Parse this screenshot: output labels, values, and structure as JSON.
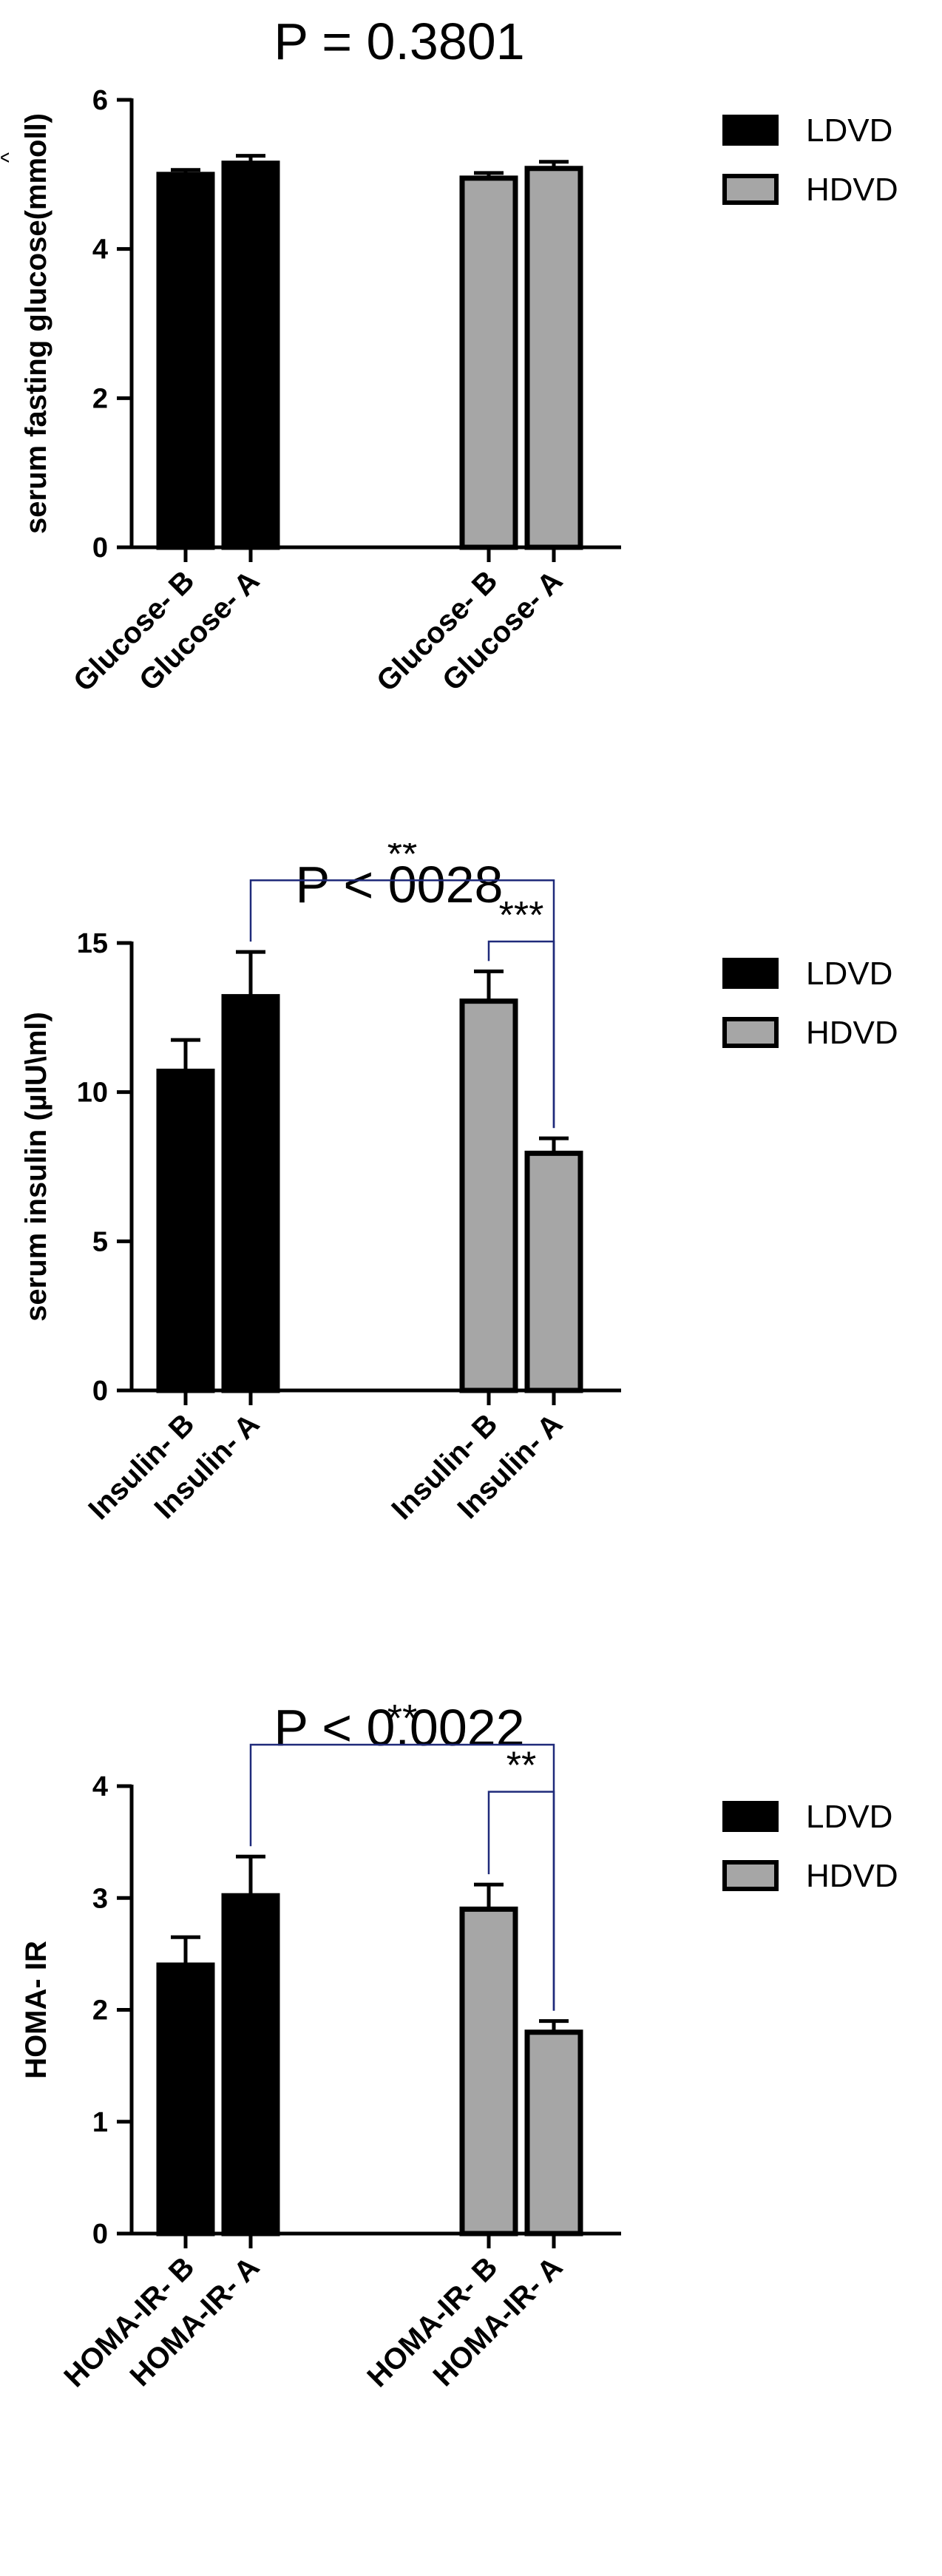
{
  "colors": {
    "ldvd": "#000000",
    "hdvd": "#a6a6a6",
    "bracket": "#1f2a7a",
    "edge": "#000000"
  },
  "chart_data": [
    {
      "type": "bar",
      "title": "P = 0.3801",
      "ylabel": "serum fasting glucose(mmoll)",
      "ylabel_mark": "^",
      "ylim": [
        0,
        6
      ],
      "yticks": [
        0,
        2,
        4,
        6
      ],
      "categories": [
        "Glucose- B",
        "Glucose- A",
        "Glucose- B",
        "Glucose- A"
      ],
      "values": [
        5.0,
        5.15,
        4.95,
        5.08
      ],
      "errors": [
        0.06,
        0.1,
        0.07,
        0.09
      ],
      "groups": [
        "LDVD",
        "LDVD",
        "HDVD",
        "HDVD"
      ],
      "legend": [
        {
          "name": "LDVD"
        },
        {
          "name": "HDVD"
        }
      ],
      "legend_position": "top-right",
      "grid": false,
      "significance": []
    },
    {
      "type": "bar",
      "title": "P < 0028",
      "ylabel": "serum insulin (µIU\\ml)",
      "ylabel_mark": "",
      "ylim": [
        0,
        15
      ],
      "yticks": [
        0,
        5,
        10,
        15
      ],
      "categories": [
        "Insulin- B",
        "Insulin- A",
        "Insulin- B",
        "Insulin- A"
      ],
      "values": [
        10.7,
        13.2,
        13.05,
        7.95
      ],
      "errors": [
        1.05,
        1.5,
        1.0,
        0.5
      ],
      "groups": [
        "LDVD",
        "LDVD",
        "HDVD",
        "HDVD"
      ],
      "legend": [
        {
          "name": "LDVD"
        },
        {
          "name": "HDVD"
        }
      ],
      "legend_position": "top-right",
      "grid": false,
      "significance": [
        {
          "from": 1,
          "to": 3,
          "label": "**",
          "y": 17.1
        },
        {
          "from": 2,
          "to": 3,
          "label": "***",
          "y": 15.05
        }
      ]
    },
    {
      "type": "bar",
      "title": "P < 0.0022",
      "ylabel": "HOMA- IR",
      "ylabel_mark": "",
      "ylim": [
        0,
        4
      ],
      "yticks": [
        0,
        1,
        2,
        3,
        4
      ],
      "categories": [
        "HOMA-IR- B",
        "HOMA-IR- A",
        "HOMA-IR- B",
        "HOMA-IR- A"
      ],
      "values": [
        2.4,
        3.02,
        2.9,
        1.8
      ],
      "errors": [
        0.25,
        0.35,
        0.22,
        0.1
      ],
      "groups": [
        "LDVD",
        "LDVD",
        "HDVD",
        "HDVD"
      ],
      "legend": [
        {
          "name": "LDVD"
        },
        {
          "name": "HDVD"
        }
      ],
      "legend_position": "top-right",
      "grid": false,
      "significance": [
        {
          "from": 1,
          "to": 3,
          "label": "**",
          "y": 4.37
        },
        {
          "from": 2,
          "to": 3,
          "label": "**",
          "y": 3.95
        }
      ]
    }
  ]
}
